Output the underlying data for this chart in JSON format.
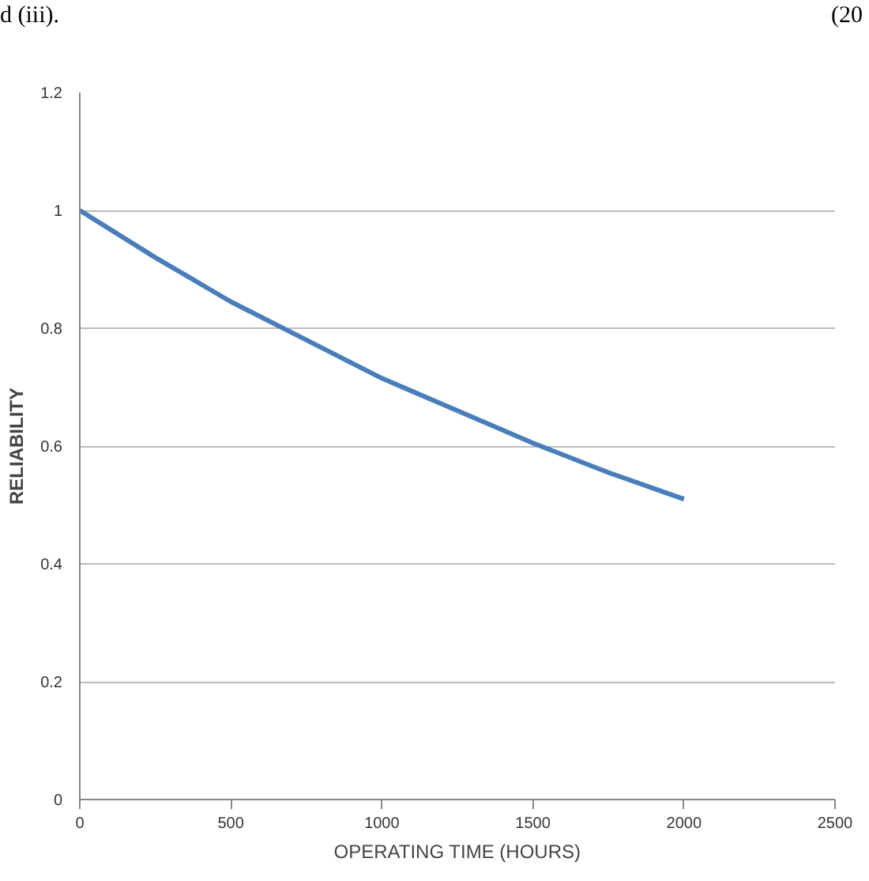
{
  "chart_data": {
    "type": "line",
    "xlabel": "OPERATING TIME (HOURS)",
    "ylabel": "RELIABILITY",
    "annotations": [
      "d (iii).",
      "(20"
    ],
    "x": [
      0,
      250,
      500,
      750,
      1000,
      1250,
      1500,
      1750,
      2000
    ],
    "series": [
      {
        "color": "#4a7ebb",
        "values": [
          1.0,
          0.92,
          0.845,
          0.78,
          0.715,
          0.66,
          0.605,
          0.555,
          0.51
        ]
      }
    ],
    "xlim": [
      0,
      2500
    ],
    "xticks": [
      0,
      500,
      1000,
      1500,
      2000,
      2500
    ],
    "ylim": [
      0,
      1.2
    ],
    "yticks": [
      0,
      0.2,
      0.4,
      0.6,
      0.8,
      1,
      1.2
    ],
    "grid": "y",
    "marker": "none",
    "line_style": "solid"
  }
}
